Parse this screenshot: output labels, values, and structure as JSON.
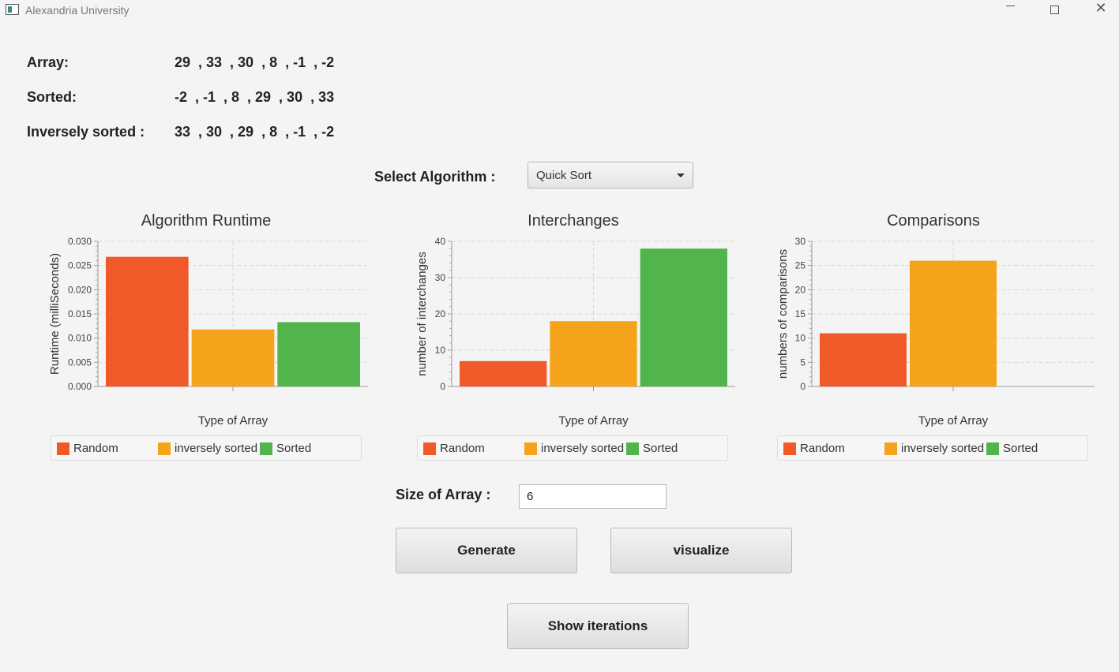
{
  "window": {
    "title": "Alexandria University"
  },
  "arrays": {
    "array_label": "Array:",
    "array_value": "29  , 33  , 30  , 8  , -1  , -2",
    "sorted_label": "Sorted:",
    "sorted_value": "-2  , -1  , 8  , 29  , 30  , 33",
    "inverse_label": "Inversely sorted :",
    "inverse_value": "33  , 30  , 29  , 8  , -1  , -2"
  },
  "algorithm": {
    "label": "Select Algorithm :",
    "selected": "Quick Sort"
  },
  "colors": {
    "random": "#f05a28",
    "inversely_sorted": "#f5a31a",
    "sorted": "#52b54b"
  },
  "chart_data": [
    {
      "type": "bar",
      "title": "Algorithm Runtime",
      "xlabel": "Type of Array",
      "ylabel": "Runtime (milliSeconds)",
      "ylim": [
        0,
        0.03
      ],
      "yticks": [
        "0.000",
        "0.005",
        "0.010",
        "0.015",
        "0.020",
        "0.025",
        "0.030"
      ],
      "series": [
        {
          "name": "Random",
          "values": [
            0.0268
          ]
        },
        {
          "name": "inversely sorted",
          "values": [
            0.0118
          ]
        },
        {
          "name": "Sorted",
          "values": [
            0.0133
          ]
        }
      ],
      "grid": true,
      "legend": "bottom"
    },
    {
      "type": "bar",
      "title": "Interchanges",
      "xlabel": "Type of Array",
      "ylabel": "number of interchanges",
      "ylim": [
        0,
        40
      ],
      "yticks": [
        "0",
        "10",
        "20",
        "30",
        "40"
      ],
      "series": [
        {
          "name": "Random",
          "values": [
            7
          ]
        },
        {
          "name": "inversely sorted",
          "values": [
            18
          ]
        },
        {
          "name": "Sorted",
          "values": [
            38
          ]
        }
      ],
      "grid": true,
      "legend": "bottom"
    },
    {
      "type": "bar",
      "title": "Comparisons",
      "xlabel": "Type of Array",
      "ylabel": "numbers of comparisons",
      "ylim": [
        0,
        30
      ],
      "yticks": [
        "0",
        "5",
        "10",
        "15",
        "20",
        "25",
        "30"
      ],
      "series": [
        {
          "name": "Random",
          "values": [
            11
          ]
        },
        {
          "name": "inversely sorted",
          "values": [
            26
          ]
        },
        {
          "name": "Sorted",
          "values": [
            0
          ]
        }
      ],
      "grid": true,
      "legend": "bottom"
    }
  ],
  "size": {
    "label": "Size of Array :",
    "value": "6"
  },
  "buttons": {
    "generate": "Generate",
    "visualize": "visualize",
    "show_iterations": "Show iterations"
  }
}
